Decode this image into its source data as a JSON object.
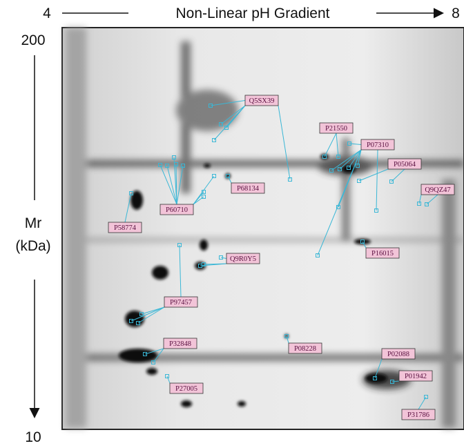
{
  "axes": {
    "x_start": "4",
    "x_label": "Non-Linear pH Gradient",
    "x_end": "8",
    "y_top": "200",
    "y_label_1": "Mr",
    "y_label_2": "(kDa)",
    "y_bottom": "10"
  },
  "labels": [
    "Q5SX39",
    "P21550",
    "P07310",
    "P05064",
    "Q9QZ47",
    "P68134",
    "P60710",
    "P58774",
    "P16015",
    "Q9R0Y5",
    "P97457",
    "P32848",
    "P08228",
    "P02088",
    "P01942",
    "P27005",
    "P31786"
  ]
}
